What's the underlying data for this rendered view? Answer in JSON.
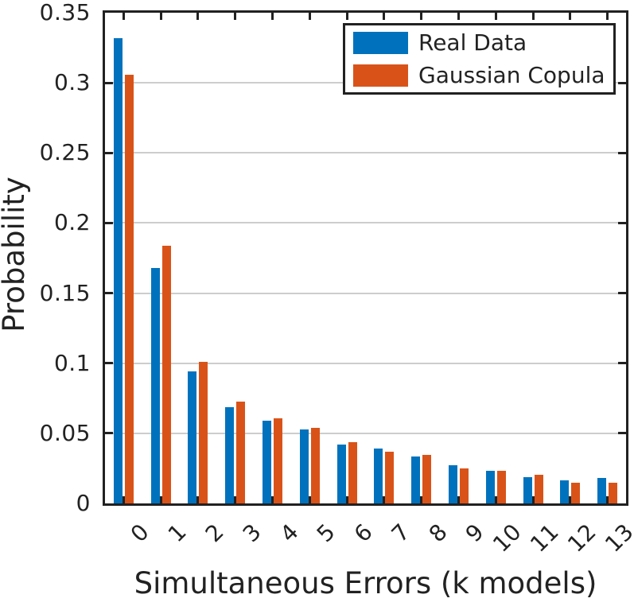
{
  "chart_data": {
    "type": "bar",
    "title": "",
    "xlabel": "Simultaneous Errors (k models)",
    "ylabel": "Probability",
    "categories": [
      "0",
      "1",
      "2",
      "3",
      "4",
      "5",
      "6",
      "7",
      "8",
      "9",
      "10",
      "11",
      "12",
      "13"
    ],
    "series": [
      {
        "name": "Real Data",
        "color": "#0072BD",
        "values": [
          0.332,
          0.168,
          0.094,
          0.0685,
          0.059,
          0.0525,
          0.042,
          0.039,
          0.0335,
          0.027,
          0.023,
          0.019,
          0.0165,
          0.018
        ]
      },
      {
        "name": "Gaussian Copula",
        "color": "#D95319",
        "values": [
          0.306,
          0.184,
          0.101,
          0.0725,
          0.0605,
          0.054,
          0.0435,
          0.037,
          0.0345,
          0.025,
          0.023,
          0.0205,
          0.015,
          0.0145
        ]
      }
    ],
    "ylim": [
      0,
      0.35
    ],
    "yticks": [
      0,
      0.05,
      0.1,
      0.15,
      0.2,
      0.25,
      0.3,
      0.35
    ],
    "ytick_labels": [
      "0",
      "0.05",
      "0.1",
      "0.15",
      "0.2",
      "0.25",
      "0.3",
      "0.35"
    ],
    "grid": true,
    "legend_position": "top-right",
    "xtick_rotation_deg": 45
  },
  "colors": {
    "axis": "#212121",
    "grid": "#cdcdcd",
    "text": "#222222",
    "background": "#ffffff",
    "series_real_data": "#0072BD",
    "series_gaussian_copula": "#D95319"
  }
}
